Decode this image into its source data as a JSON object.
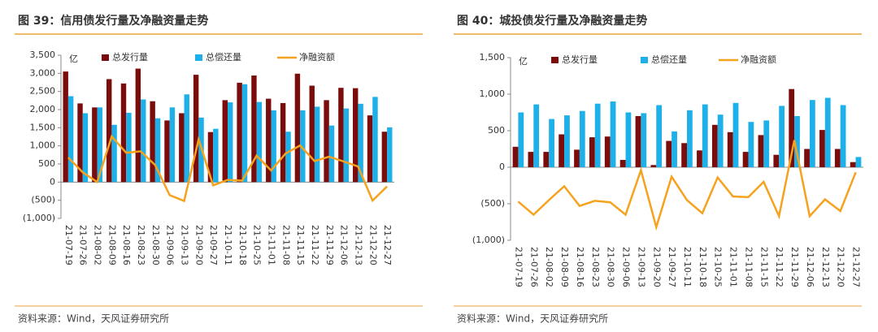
{
  "chart_data": [
    {
      "type": "bar_line",
      "title": "图 39：信用债发行量及净融资量走势",
      "unit": "亿",
      "source": "资料来源：Wind，天风证券研究所",
      "categories": [
        "21-07-19",
        "21-07-26",
        "21-08-02",
        "21-08-09",
        "21-08-16",
        "21-08-23",
        "21-08-30",
        "21-09-06",
        "21-09-13",
        "21-09-20",
        "21-09-27",
        "21-10-11",
        "21-10-18",
        "21-10-25",
        "21-11-01",
        "21-11-08",
        "21-11-15",
        "21-11-22",
        "21-11-29",
        "21-12-06",
        "21-12-13",
        "21-12-20",
        "21-12-27"
      ],
      "series": [
        {
          "name": "总发行量",
          "color": "#7b0c0c",
          "kind": "bar",
          "values": [
            3050,
            2170,
            2060,
            2840,
            2720,
            3130,
            2230,
            1700,
            1900,
            2960,
            1380,
            2260,
            2740,
            2940,
            2300,
            2180,
            2990,
            2660,
            2260,
            2600,
            2590,
            1840,
            1390
          ]
        },
        {
          "name": "总偿还量",
          "color": "#1eb0e8",
          "kind": "bar",
          "values": [
            2370,
            1900,
            2060,
            1580,
            1910,
            2280,
            1760,
            2060,
            2420,
            1780,
            1470,
            2200,
            2700,
            2210,
            1980,
            1390,
            1980,
            2080,
            1560,
            2030,
            2160,
            2350,
            1510
          ]
        },
        {
          "name": "净融资额",
          "color": "#f5a21e",
          "kind": "line",
          "values": [
            680,
            270,
            0,
            1260,
            810,
            850,
            470,
            -360,
            -520,
            1180,
            -90,
            60,
            40,
            730,
            320,
            790,
            1010,
            580,
            700,
            570,
            430,
            -510,
            -120
          ]
        }
      ],
      "ylim": [
        -1000,
        3500
      ],
      "yticks": [
        {
          "value": -1000,
          "label": "(1,000)"
        },
        {
          "value": -500,
          "label": "(500)"
        },
        0,
        500,
        {
          "value": 1000,
          "label": "1,000"
        },
        {
          "value": 1500,
          "label": "1,500"
        },
        {
          "value": 2000,
          "label": "2,000"
        },
        {
          "value": 2500,
          "label": "2,500"
        },
        {
          "value": 3000,
          "label": "3,000"
        },
        {
          "value": 3500,
          "label": "3,500"
        }
      ]
    },
    {
      "type": "bar_line",
      "title": "图 40：城投债发行量及净融资量走势",
      "unit": "亿",
      "source": "资料来源：Wind，天风证券研究所",
      "categories": [
        "21-07-19",
        "21-07-26",
        "21-08-02",
        "21-08-09",
        "21-08-16",
        "21-08-23",
        "21-08-30",
        "21-09-06",
        "21-09-13",
        "21-09-20",
        "21-09-27",
        "21-10-11",
        "21-10-18",
        "21-10-25",
        "21-11-01",
        "21-11-08",
        "21-11-15",
        "21-11-22",
        "21-11-29",
        "21-12-06",
        "21-12-13",
        "21-12-20",
        "21-12-27"
      ],
      "series": [
        {
          "name": "总发行量",
          "color": "#7b0c0c",
          "kind": "bar",
          "values": [
            280,
            210,
            210,
            450,
            240,
            410,
            420,
            100,
            700,
            30,
            360,
            330,
            230,
            580,
            480,
            210,
            440,
            170,
            1070,
            250,
            510,
            250,
            70
          ]
        },
        {
          "name": "总偿还量",
          "color": "#1eb0e8",
          "kind": "bar",
          "values": [
            750,
            860,
            660,
            710,
            770,
            870,
            900,
            750,
            740,
            850,
            490,
            780,
            860,
            720,
            880,
            620,
            640,
            840,
            700,
            920,
            950,
            850,
            140
          ]
        },
        {
          "name": "净融资额",
          "color": "#f5a21e",
          "kind": "line",
          "values": [
            -470,
            -650,
            -450,
            -260,
            -530,
            -460,
            -480,
            -650,
            -40,
            -820,
            -130,
            -450,
            -630,
            -140,
            -400,
            -410,
            -200,
            -670,
            370,
            -670,
            -440,
            -600,
            -70
          ]
        }
      ],
      "ylim": [
        -1000,
        1500
      ],
      "yticks": [
        {
          "value": -1000,
          "label": "(1,000)"
        },
        {
          "value": -500,
          "label": "(500)"
        },
        0,
        500,
        {
          "value": 1000,
          "label": "1,000"
        },
        {
          "value": 1500,
          "label": "1,500"
        }
      ]
    }
  ]
}
